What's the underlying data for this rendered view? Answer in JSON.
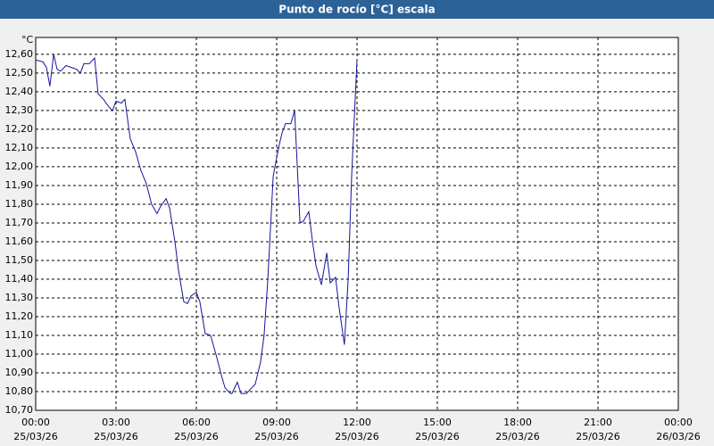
{
  "chart_data": {
    "type": "line",
    "title": "Punto de rocío [°C] escala",
    "y_unit": "°C",
    "x": [
      0,
      0.27,
      0.4,
      0.53,
      0.67,
      0.8,
      0.93,
      1.13,
      1.33,
      1.53,
      1.67,
      1.8,
      2,
      2.2,
      2.33,
      2.53,
      2.73,
      2.87,
      3,
      3.2,
      3.33,
      3.53,
      3.73,
      3.93,
      4.13,
      4.33,
      4.53,
      4.67,
      4.87,
      5,
      5.2,
      5.33,
      5.53,
      5.67,
      5.8,
      6,
      6.13,
      6.33,
      6.53,
      6.73,
      6.93,
      7.07,
      7.27,
      7.33,
      7.53,
      7.67,
      7.87,
      8.07,
      8.2,
      8.4,
      8.53,
      8.67,
      8.87,
      9.07,
      9.2,
      9.33,
      9.53,
      9.67,
      9.87,
      10,
      10.2,
      10.33,
      10.47,
      10.67,
      10.87,
      11,
      11.2,
      11.33,
      11.53,
      11.67,
      11.8,
      12
    ],
    "series": [
      {
        "name": "Punto de rocío",
        "color": "#14149a",
        "values": [
          12.57,
          12.56,
          12.53,
          12.43,
          12.6,
          12.52,
          12.51,
          12.54,
          12.53,
          12.52,
          12.5,
          12.55,
          12.55,
          12.58,
          12.39,
          12.36,
          12.32,
          12.3,
          12.35,
          12.34,
          12.36,
          12.15,
          12.08,
          11.98,
          11.91,
          11.8,
          11.75,
          11.79,
          11.83,
          11.78,
          11.6,
          11.45,
          11.28,
          11.27,
          11.31,
          11.33,
          11.28,
          11.11,
          11.1,
          11.0,
          10.89,
          10.82,
          10.79,
          10.79,
          10.85,
          10.79,
          10.79,
          10.82,
          10.84,
          10.96,
          11.1,
          11.4,
          11.95,
          12.1,
          12.18,
          12.23,
          12.23,
          12.3,
          11.7,
          11.71,
          11.76,
          11.61,
          11.47,
          11.37,
          11.54,
          11.38,
          11.41,
          11.25,
          11.05,
          11.4,
          11.95,
          12.57
        ]
      }
    ],
    "xlim": [
      0,
      24
    ],
    "ylim": [
      10.7,
      12.69
    ],
    "xticks": [
      {
        "value": 0,
        "label": "00:00",
        "date": "25/03/26"
      },
      {
        "value": 3,
        "label": "03:00",
        "date": "25/03/26"
      },
      {
        "value": 6,
        "label": "06:00",
        "date": "25/03/26"
      },
      {
        "value": 9,
        "label": "09:00",
        "date": "25/03/26"
      },
      {
        "value": 12,
        "label": "12:00",
        "date": "25/03/26"
      },
      {
        "value": 15,
        "label": "15:00",
        "date": "25/03/26"
      },
      {
        "value": 18,
        "label": "18:00",
        "date": "25/03/26"
      },
      {
        "value": 21,
        "label": "21:00",
        "date": "25/03/26"
      },
      {
        "value": 24,
        "label": "00:00",
        "date": "26/03/26"
      }
    ],
    "yticks": [
      {
        "value": 10.7,
        "label": "10,70"
      },
      {
        "value": 10.8,
        "label": "10,80"
      },
      {
        "value": 10.9,
        "label": "10,90"
      },
      {
        "value": 11.0,
        "label": "11,00"
      },
      {
        "value": 11.1,
        "label": "11,10"
      },
      {
        "value": 11.2,
        "label": "11,20"
      },
      {
        "value": 11.3,
        "label": "11,30"
      },
      {
        "value": 11.4,
        "label": "11,40"
      },
      {
        "value": 11.5,
        "label": "11,50"
      },
      {
        "value": 11.6,
        "label": "11,60"
      },
      {
        "value": 11.7,
        "label": "11,70"
      },
      {
        "value": 11.8,
        "label": "11,80"
      },
      {
        "value": 11.9,
        "label": "11,90"
      },
      {
        "value": 12.0,
        "label": "12,00"
      },
      {
        "value": 12.1,
        "label": "12,10"
      },
      {
        "value": 12.2,
        "label": "12,20"
      },
      {
        "value": 12.3,
        "label": "12,30"
      },
      {
        "value": 12.4,
        "label": "12,40"
      },
      {
        "value": 12.5,
        "label": "12,50"
      },
      {
        "value": 12.6,
        "label": "12,60"
      }
    ],
    "grid": true
  }
}
